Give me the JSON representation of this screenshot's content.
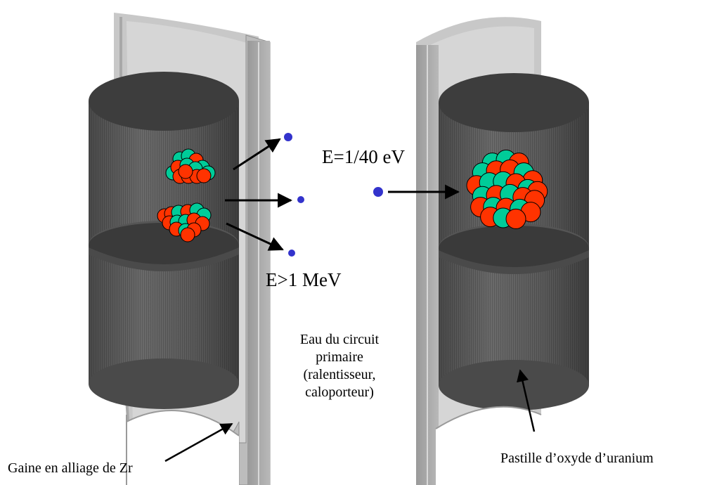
{
  "labels": {
    "energy_thermal": "E=1/40 eV",
    "energy_fast": "E>1 MeV",
    "water_line1": "Eau du circuit",
    "water_line2": "primaire",
    "water_line3": "(ralentisseur,",
    "water_line4": "caloporteur)",
    "cladding": "Gaine en alliage de Zr",
    "pellet": "Pastille d’oxyde d’uranium"
  },
  "colors": {
    "proton": "#ff3300",
    "neutron_particle": "#00cc99",
    "free_neutron": "#3333cc",
    "pellet_body": "#5a5a5a",
    "pellet_top": "#3a3a3a",
    "cladding": "#b4b4b4",
    "cladding_inner": "#d2d2d2"
  },
  "icons": {
    "nucleus": "nucleus-icon",
    "neutron": "neutron-dot-icon"
  }
}
